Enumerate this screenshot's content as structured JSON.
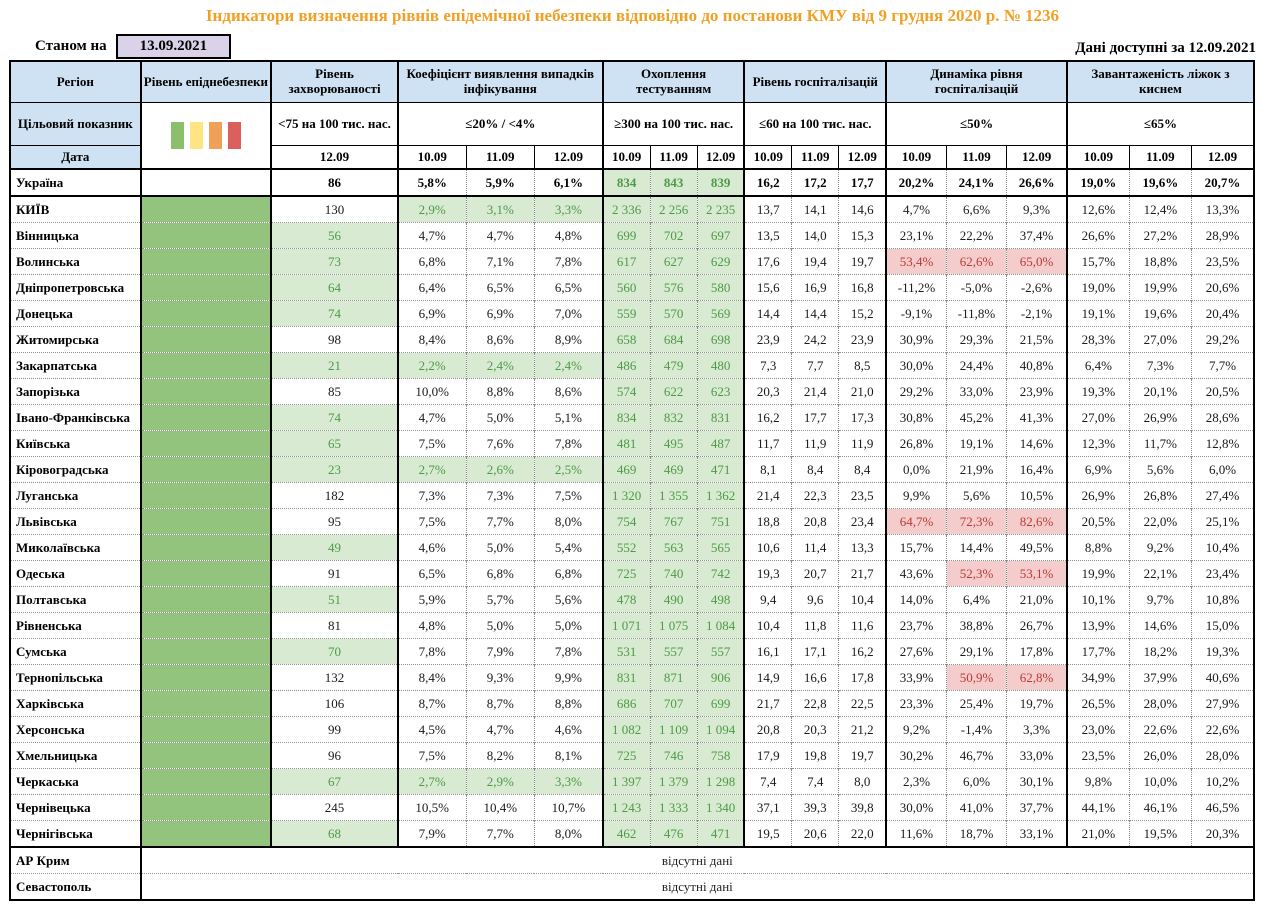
{
  "title": "Індикатори визначення рівнів епідемічної небезпеки відповідно до постанови КМУ від 9 грудня 2020 р. № 1236",
  "top": {
    "as_of_label": "Станом на",
    "as_of_date": "13.09.2021",
    "available_label": "Дані доступні за",
    "available_date": "12.09.2021"
  },
  "header": {
    "region": "Регіон",
    "target_label": "Цільовий показник",
    "date_label": "Дата",
    "incidence_date": "12.09",
    "dates": [
      "10.09",
      "11.09",
      "12.09"
    ],
    "groups": [
      {
        "key": "danger",
        "label": "Рівень епіднебезпеки",
        "target": "",
        "cols": 1
      },
      {
        "key": "incidence",
        "label": "Рівень захворюваності",
        "target": "<75 на 100 тис. нас.",
        "cols": 1
      },
      {
        "key": "detection",
        "label": "Коефіцієнт виявлення випадків інфікування",
        "target": "≤20% / <4%",
        "cols": 3
      },
      {
        "key": "testing",
        "label": "Охоплення тестуванням",
        "target": "≥300 на 100 тис. нас.",
        "cols": 3
      },
      {
        "key": "hosp",
        "label": "Рівень госпіталізацій",
        "target": "≤60 на 100 тис. нас.",
        "cols": 3
      },
      {
        "key": "dynamics",
        "label": "Динаміка рівня госпіталізацій",
        "target": "≤50%",
        "cols": 3
      },
      {
        "key": "beds",
        "label": "Завантаженість ліжок з киснем",
        "target": "≤65%",
        "cols": 3
      }
    ],
    "legend": [
      {
        "name": "green",
        "color": "#8CBF6C"
      },
      {
        "name": "yellow",
        "color": "#FFE582"
      },
      {
        "name": "orange",
        "color": "#F0A159"
      },
      {
        "name": "red",
        "color": "#DB5F5B"
      }
    ]
  },
  "colors": {
    "title_orange": "#F2A024",
    "header_blue": "#CFE2F3",
    "lavender": "#D9D2E9",
    "danger_green": "#93C47D",
    "light_green": "#D9EAD3",
    "green_text": "#4D9A45",
    "pink": "#F4CCCC",
    "red_text": "#BB3B35"
  },
  "no_data_text": "відсутні дані",
  "rows": [
    {
      "name": "Україна",
      "total": true,
      "danger": false,
      "inc": "86",
      "incG": false,
      "det": [
        "5,8%",
        "5,9%",
        "6,1%"
      ],
      "detG": false,
      "test": [
        "834",
        "843",
        "839"
      ],
      "hosp": [
        "16,2",
        "17,2",
        "17,7"
      ],
      "dyn": [
        "20,2%",
        "24,1%",
        "26,6%"
      ],
      "pink": [
        0,
        0,
        0
      ],
      "beds": [
        "19,0%",
        "19,6%",
        "20,7%"
      ]
    },
    {
      "name": "КИЇВ",
      "danger": true,
      "inc": "130",
      "incG": false,
      "det": [
        "2,9%",
        "3,1%",
        "3,3%"
      ],
      "detG": true,
      "test": [
        "2 336",
        "2 256",
        "2 235"
      ],
      "hosp": [
        "13,7",
        "14,1",
        "14,6"
      ],
      "dyn": [
        "4,7%",
        "6,6%",
        "9,3%"
      ],
      "pink": [
        0,
        0,
        0
      ],
      "beds": [
        "12,6%",
        "12,4%",
        "13,3%"
      ]
    },
    {
      "name": "Вінницька",
      "danger": true,
      "inc": "56",
      "incG": true,
      "det": [
        "4,7%",
        "4,7%",
        "4,8%"
      ],
      "detG": false,
      "test": [
        "699",
        "702",
        "697"
      ],
      "hosp": [
        "13,5",
        "14,0",
        "15,3"
      ],
      "dyn": [
        "23,1%",
        "22,2%",
        "37,4%"
      ],
      "pink": [
        0,
        0,
        0
      ],
      "beds": [
        "26,6%",
        "27,2%",
        "28,9%"
      ]
    },
    {
      "name": "Волинська",
      "danger": true,
      "inc": "73",
      "incG": true,
      "det": [
        "6,8%",
        "7,1%",
        "7,8%"
      ],
      "detG": false,
      "test": [
        "617",
        "627",
        "629"
      ],
      "hosp": [
        "17,6",
        "19,4",
        "19,7"
      ],
      "dyn": [
        "53,4%",
        "62,6%",
        "65,0%"
      ],
      "pink": [
        1,
        1,
        1
      ],
      "beds": [
        "15,7%",
        "18,8%",
        "23,5%"
      ]
    },
    {
      "name": "Дніпропетровська",
      "danger": true,
      "inc": "64",
      "incG": true,
      "det": [
        "6,4%",
        "6,5%",
        "6,5%"
      ],
      "detG": false,
      "test": [
        "560",
        "576",
        "580"
      ],
      "hosp": [
        "15,6",
        "16,9",
        "16,8"
      ],
      "dyn": [
        "-11,2%",
        "-5,0%",
        "-2,6%"
      ],
      "pink": [
        0,
        0,
        0
      ],
      "beds": [
        "19,0%",
        "19,9%",
        "20,6%"
      ]
    },
    {
      "name": "Донецька",
      "danger": true,
      "inc": "74",
      "incG": true,
      "det": [
        "6,9%",
        "6,9%",
        "7,0%"
      ],
      "detG": false,
      "test": [
        "559",
        "570",
        "569"
      ],
      "hosp": [
        "14,4",
        "14,4",
        "15,2"
      ],
      "dyn": [
        "-9,1%",
        "-11,8%",
        "-2,1%"
      ],
      "pink": [
        0,
        0,
        0
      ],
      "beds": [
        "19,1%",
        "19,6%",
        "20,4%"
      ]
    },
    {
      "name": "Житомирська",
      "danger": true,
      "inc": "98",
      "incG": false,
      "det": [
        "8,4%",
        "8,6%",
        "8,9%"
      ],
      "detG": false,
      "test": [
        "658",
        "684",
        "698"
      ],
      "hosp": [
        "23,9",
        "24,2",
        "23,9"
      ],
      "dyn": [
        "30,9%",
        "29,3%",
        "21,5%"
      ],
      "pink": [
        0,
        0,
        0
      ],
      "beds": [
        "28,3%",
        "27,0%",
        "29,2%"
      ]
    },
    {
      "name": "Закарпатська",
      "danger": true,
      "inc": "21",
      "incG": true,
      "det": [
        "2,2%",
        "2,4%",
        "2,4%"
      ],
      "detG": true,
      "test": [
        "486",
        "479",
        "480"
      ],
      "hosp": [
        "7,3",
        "7,7",
        "8,5"
      ],
      "dyn": [
        "30,0%",
        "24,4%",
        "40,8%"
      ],
      "pink": [
        0,
        0,
        0
      ],
      "beds": [
        "6,4%",
        "7,3%",
        "7,7%"
      ]
    },
    {
      "name": "Запорізька",
      "danger": true,
      "inc": "85",
      "incG": false,
      "det": [
        "10,0%",
        "8,8%",
        "8,6%"
      ],
      "detG": false,
      "test": [
        "574",
        "622",
        "623"
      ],
      "hosp": [
        "20,3",
        "21,4",
        "21,0"
      ],
      "dyn": [
        "29,2%",
        "33,0%",
        "23,9%"
      ],
      "pink": [
        0,
        0,
        0
      ],
      "beds": [
        "19,3%",
        "20,1%",
        "20,5%"
      ]
    },
    {
      "name": "Івано-Франківська",
      "danger": true,
      "inc": "74",
      "incG": true,
      "det": [
        "4,7%",
        "5,0%",
        "5,1%"
      ],
      "detG": false,
      "test": [
        "834",
        "832",
        "831"
      ],
      "hosp": [
        "16,2",
        "17,7",
        "17,3"
      ],
      "dyn": [
        "30,8%",
        "45,2%",
        "41,3%"
      ],
      "pink": [
        0,
        0,
        0
      ],
      "beds": [
        "27,0%",
        "26,9%",
        "28,6%"
      ]
    },
    {
      "name": "Київська",
      "danger": true,
      "inc": "65",
      "incG": true,
      "det": [
        "7,5%",
        "7,6%",
        "7,8%"
      ],
      "detG": false,
      "test": [
        "481",
        "495",
        "487"
      ],
      "hosp": [
        "11,7",
        "11,9",
        "11,9"
      ],
      "dyn": [
        "26,8%",
        "19,1%",
        "14,6%"
      ],
      "pink": [
        0,
        0,
        0
      ],
      "beds": [
        "12,3%",
        "11,7%",
        "12,8%"
      ]
    },
    {
      "name": "Кіровоградська",
      "danger": true,
      "inc": "23",
      "incG": true,
      "det": [
        "2,7%",
        "2,6%",
        "2,5%"
      ],
      "detG": true,
      "test": [
        "469",
        "469",
        "471"
      ],
      "hosp": [
        "8,1",
        "8,4",
        "8,4"
      ],
      "dyn": [
        "0,0%",
        "21,9%",
        "16,4%"
      ],
      "pink": [
        0,
        0,
        0
      ],
      "beds": [
        "6,9%",
        "5,6%",
        "6,0%"
      ]
    },
    {
      "name": "Луганська",
      "danger": true,
      "inc": "182",
      "incG": false,
      "det": [
        "7,3%",
        "7,3%",
        "7,5%"
      ],
      "detG": false,
      "test": [
        "1 320",
        "1 355",
        "1 362"
      ],
      "hosp": [
        "21,4",
        "22,3",
        "23,5"
      ],
      "dyn": [
        "9,9%",
        "5,6%",
        "10,5%"
      ],
      "pink": [
        0,
        0,
        0
      ],
      "beds": [
        "26,9%",
        "26,8%",
        "27,4%"
      ]
    },
    {
      "name": "Львівська",
      "danger": true,
      "inc": "95",
      "incG": false,
      "det": [
        "7,5%",
        "7,7%",
        "8,0%"
      ],
      "detG": false,
      "test": [
        "754",
        "767",
        "751"
      ],
      "hosp": [
        "18,8",
        "20,8",
        "23,4"
      ],
      "dyn": [
        "64,7%",
        "72,3%",
        "82,6%"
      ],
      "pink": [
        1,
        1,
        1
      ],
      "beds": [
        "20,5%",
        "22,0%",
        "25,1%"
      ]
    },
    {
      "name": "Миколаївська",
      "danger": true,
      "inc": "49",
      "incG": true,
      "det": [
        "4,6%",
        "5,0%",
        "5,4%"
      ],
      "detG": false,
      "test": [
        "552",
        "563",
        "565"
      ],
      "hosp": [
        "10,6",
        "11,4",
        "13,3"
      ],
      "dyn": [
        "15,7%",
        "14,4%",
        "49,5%"
      ],
      "pink": [
        0,
        0,
        0
      ],
      "beds": [
        "8,8%",
        "9,2%",
        "10,4%"
      ]
    },
    {
      "name": "Одеська",
      "danger": true,
      "inc": "91",
      "incG": false,
      "det": [
        "6,5%",
        "6,8%",
        "6,8%"
      ],
      "detG": false,
      "test": [
        "725",
        "740",
        "742"
      ],
      "hosp": [
        "19,3",
        "20,7",
        "21,7"
      ],
      "dyn": [
        "43,6%",
        "52,3%",
        "53,1%"
      ],
      "pink": [
        0,
        1,
        1
      ],
      "beds": [
        "19,9%",
        "22,1%",
        "23,4%"
      ]
    },
    {
      "name": "Полтавська",
      "danger": true,
      "inc": "51",
      "incG": true,
      "det": [
        "5,9%",
        "5,7%",
        "5,6%"
      ],
      "detG": false,
      "test": [
        "478",
        "490",
        "498"
      ],
      "hosp": [
        "9,4",
        "9,6",
        "10,4"
      ],
      "dyn": [
        "14,0%",
        "6,4%",
        "21,0%"
      ],
      "pink": [
        0,
        0,
        0
      ],
      "beds": [
        "10,1%",
        "9,7%",
        "10,8%"
      ]
    },
    {
      "name": "Рівненська",
      "danger": true,
      "inc": "81",
      "incG": false,
      "det": [
        "4,8%",
        "5,0%",
        "5,0%"
      ],
      "detG": false,
      "test": [
        "1 071",
        "1 075",
        "1 084"
      ],
      "hosp": [
        "10,4",
        "11,8",
        "11,6"
      ],
      "dyn": [
        "23,7%",
        "38,8%",
        "26,7%"
      ],
      "pink": [
        0,
        0,
        0
      ],
      "beds": [
        "13,9%",
        "14,6%",
        "15,0%"
      ]
    },
    {
      "name": "Сумська",
      "danger": true,
      "inc": "70",
      "incG": true,
      "det": [
        "7,8%",
        "7,9%",
        "7,8%"
      ],
      "detG": false,
      "test": [
        "531",
        "557",
        "557"
      ],
      "hosp": [
        "16,1",
        "17,1",
        "16,2"
      ],
      "dyn": [
        "27,6%",
        "29,1%",
        "17,8%"
      ],
      "pink": [
        0,
        0,
        0
      ],
      "beds": [
        "17,7%",
        "18,2%",
        "19,3%"
      ]
    },
    {
      "name": "Тернопільська",
      "danger": true,
      "inc": "132",
      "incG": false,
      "det": [
        "8,4%",
        "9,3%",
        "9,9%"
      ],
      "detG": false,
      "test": [
        "831",
        "871",
        "906"
      ],
      "hosp": [
        "14,9",
        "16,6",
        "17,8"
      ],
      "dyn": [
        "33,9%",
        "50,9%",
        "62,8%"
      ],
      "pink": [
        0,
        1,
        1
      ],
      "beds": [
        "34,9%",
        "37,9%",
        "40,6%"
      ]
    },
    {
      "name": "Харківська",
      "danger": true,
      "inc": "106",
      "incG": false,
      "det": [
        "8,7%",
        "8,7%",
        "8,8%"
      ],
      "detG": false,
      "test": [
        "686",
        "707",
        "699"
      ],
      "hosp": [
        "21,7",
        "22,8",
        "22,5"
      ],
      "dyn": [
        "23,3%",
        "25,4%",
        "19,7%"
      ],
      "pink": [
        0,
        0,
        0
      ],
      "beds": [
        "26,5%",
        "28,0%",
        "27,9%"
      ]
    },
    {
      "name": "Херсонська",
      "danger": true,
      "inc": "99",
      "incG": false,
      "det": [
        "4,5%",
        "4,7%",
        "4,6%"
      ],
      "detG": false,
      "test": [
        "1 082",
        "1 109",
        "1 094"
      ],
      "hosp": [
        "20,8",
        "20,3",
        "21,2"
      ],
      "dyn": [
        "9,2%",
        "-1,4%",
        "3,3%"
      ],
      "pink": [
        0,
        0,
        0
      ],
      "beds": [
        "23,0%",
        "22,6%",
        "22,6%"
      ]
    },
    {
      "name": "Хмельницька",
      "danger": true,
      "inc": "96",
      "incG": false,
      "det": [
        "7,5%",
        "8,2%",
        "8,1%"
      ],
      "detG": false,
      "test": [
        "725",
        "746",
        "758"
      ],
      "hosp": [
        "17,9",
        "19,8",
        "19,7"
      ],
      "dyn": [
        "30,2%",
        "46,7%",
        "33,0%"
      ],
      "pink": [
        0,
        0,
        0
      ],
      "beds": [
        "23,5%",
        "26,0%",
        "28,0%"
      ]
    },
    {
      "name": "Черкаська",
      "danger": true,
      "inc": "67",
      "incG": true,
      "det": [
        "2,7%",
        "2,9%",
        "3,3%"
      ],
      "detG": true,
      "test": [
        "1 397",
        "1 379",
        "1 298"
      ],
      "hosp": [
        "7,4",
        "7,4",
        "8,0"
      ],
      "dyn": [
        "2,3%",
        "6,0%",
        "30,1%"
      ],
      "pink": [
        0,
        0,
        0
      ],
      "beds": [
        "9,8%",
        "10,0%",
        "10,2%"
      ]
    },
    {
      "name": "Чернівецька",
      "danger": true,
      "inc": "245",
      "incG": false,
      "det": [
        "10,5%",
        "10,4%",
        "10,7%"
      ],
      "detG": false,
      "test": [
        "1 243",
        "1 333",
        "1 340"
      ],
      "hosp": [
        "37,1",
        "39,3",
        "39,8"
      ],
      "dyn": [
        "30,0%",
        "41,0%",
        "37,7%"
      ],
      "pink": [
        0,
        0,
        0
      ],
      "beds": [
        "44,1%",
        "46,1%",
        "46,5%"
      ]
    },
    {
      "name": "Чернігівська",
      "danger": true,
      "inc": "68",
      "incG": true,
      "det": [
        "7,9%",
        "7,7%",
        "8,0%"
      ],
      "detG": false,
      "test": [
        "462",
        "476",
        "471"
      ],
      "hosp": [
        "19,5",
        "20,6",
        "22,0"
      ],
      "dyn": [
        "11,6%",
        "18,7%",
        "33,1%"
      ],
      "pink": [
        0,
        0,
        0
      ],
      "beds": [
        "21,0%",
        "19,5%",
        "20,3%"
      ]
    }
  ],
  "no_data_rows": [
    {
      "name": "АР Крим"
    },
    {
      "name": "Севастополь"
    }
  ]
}
